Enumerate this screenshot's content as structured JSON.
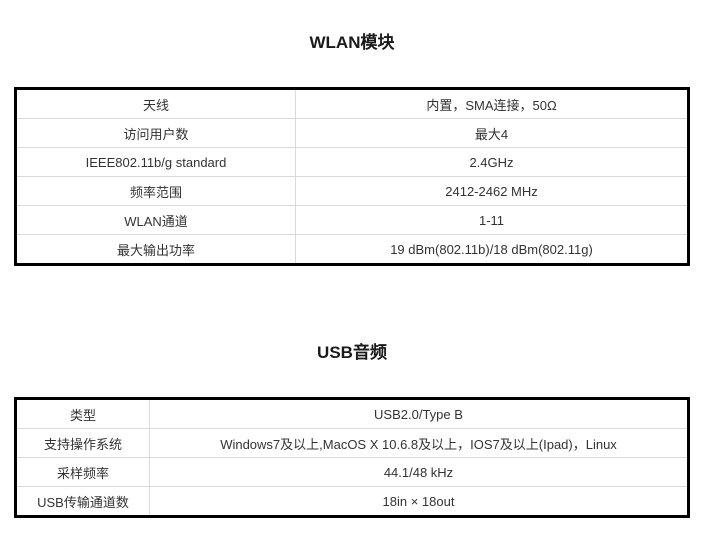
{
  "page": {
    "background": "#ffffff",
    "text_color": "#333333",
    "outer_border_color": "#000000",
    "grid_line_color": "#d9d9d9"
  },
  "sections": [
    {
      "title": "WLAN模块",
      "rows": [
        {
          "label": "天线",
          "value": "内置，SMA连接，50Ω"
        },
        {
          "label": "访问用户数",
          "value": "最大4"
        },
        {
          "label": "IEEE802.11b/g standard",
          "value": "2.4GHz"
        },
        {
          "label": "频率范围",
          "value": "2412-2462 MHz"
        },
        {
          "label": "WLAN通道",
          "value": "1-11"
        },
        {
          "label": "最大输出功率",
          "value": "19 dBm(802.11b)/18 dBm(802.11g)"
        }
      ]
    },
    {
      "title": "USB音频",
      "rows": [
        {
          "label": "类型",
          "value": "USB2.0/Type B"
        },
        {
          "label": "支持操作系统",
          "value": "Windows7及以上,MacOS X 10.6.8及以上，IOS7及以上(Ipad)，Linux"
        },
        {
          "label": "采样频率",
          "value": "44.1/48 kHz"
        },
        {
          "label": "USB传输通道数",
          "value": "18in × 18out"
        }
      ]
    }
  ]
}
